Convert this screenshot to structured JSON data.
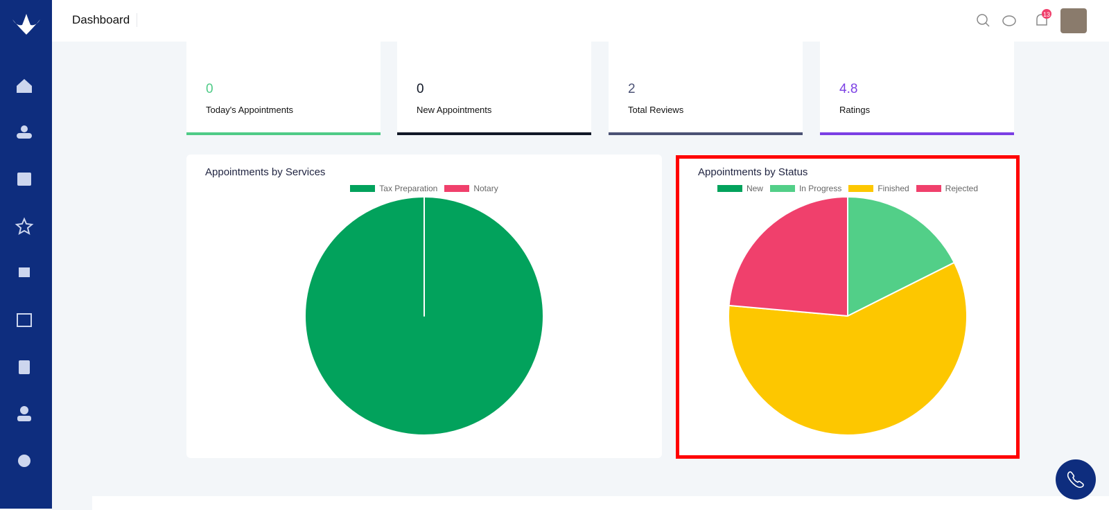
{
  "header": {
    "title": "Dashboard",
    "notifications": 13
  },
  "stats": [
    {
      "value": 0,
      "label": "Today's Appointments",
      "color": "#4fcb87"
    },
    {
      "value": 0,
      "label": "New Appointments",
      "color": "#111827"
    },
    {
      "value": 2,
      "label": "Total Reviews",
      "color": "#4b5275"
    },
    {
      "value": 4.8,
      "label": "Ratings",
      "color": "#7b3fe4"
    }
  ],
  "chart_data": [
    {
      "type": "pie",
      "title": "Appointments by Services",
      "categories": [
        "Tax Preparation",
        "Notary"
      ],
      "values": [
        100,
        0
      ],
      "colors": [
        "#02a25c",
        "#f0406c"
      ]
    },
    {
      "type": "pie",
      "title": "Appointments by Status",
      "categories": [
        "New",
        "In Progress",
        "Finished",
        "Rejected"
      ],
      "values": [
        0,
        17.6,
        58.8,
        23.6
      ],
      "colors": [
        "#02a25c",
        "#52cf88",
        "#fdc700",
        "#f0406c"
      ]
    }
  ]
}
